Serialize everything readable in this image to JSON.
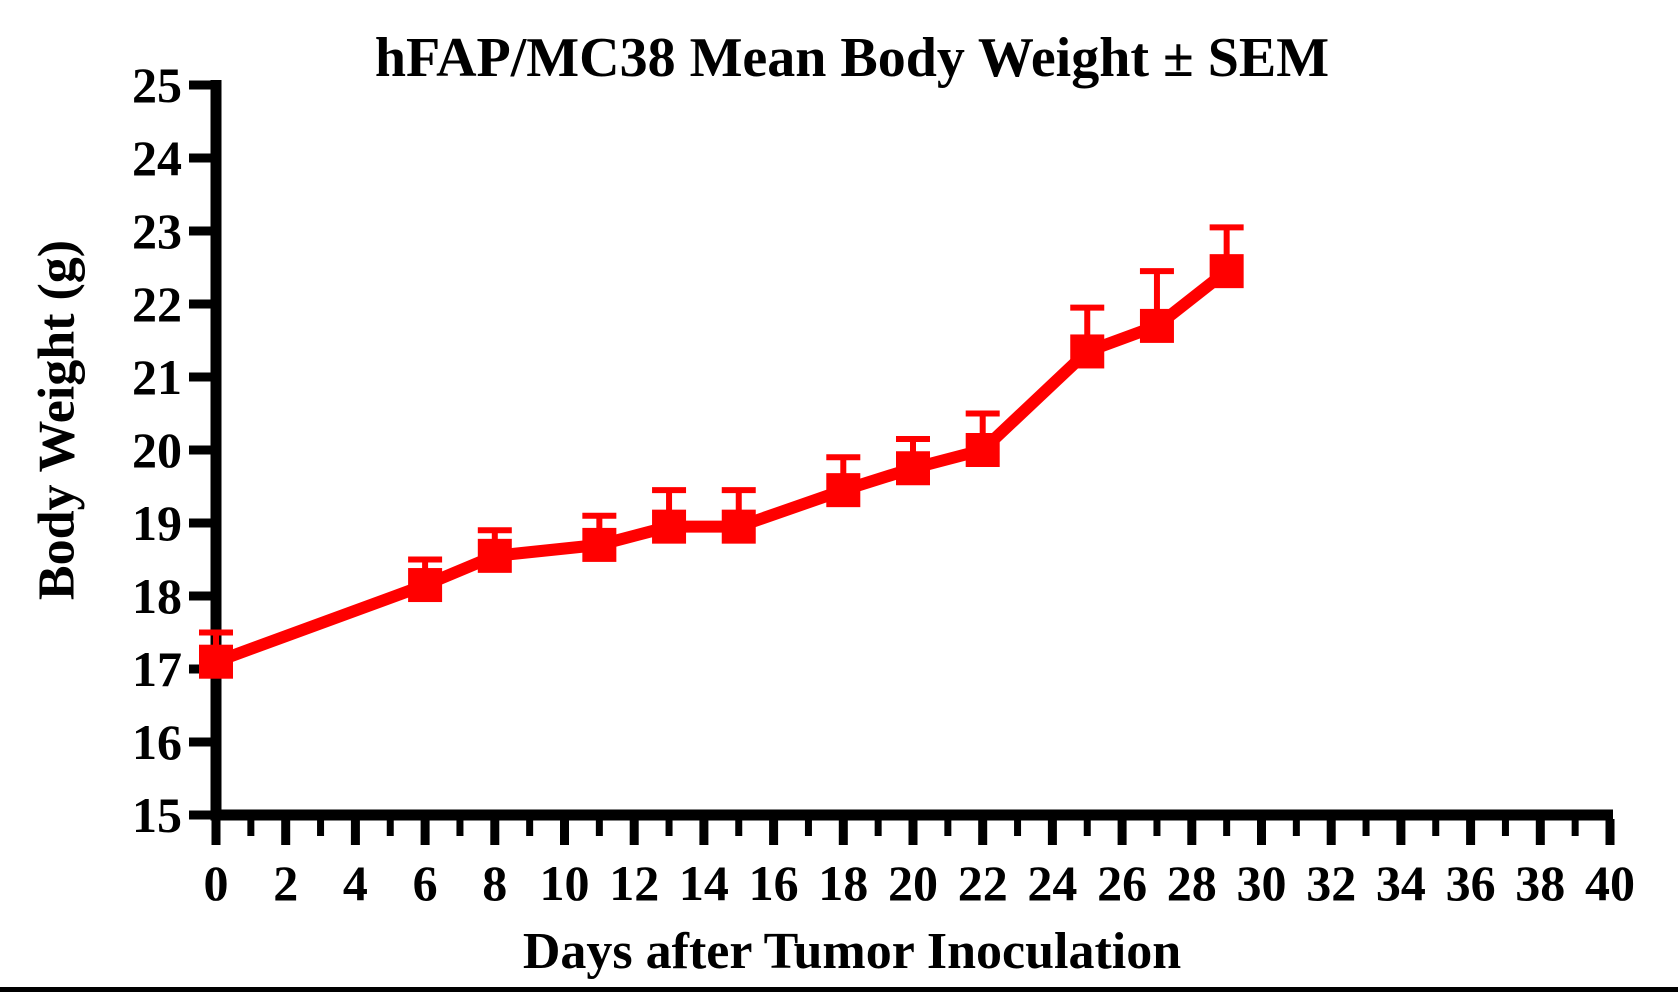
{
  "chart_data": {
    "type": "line",
    "title": "hFAP/MC38 Mean Body Weight ± SEM",
    "xlabel": "Days after Tumor Inoculation",
    "ylabel": "Body Weight (g)",
    "xlim": [
      0,
      40
    ],
    "ylim": [
      15,
      25
    ],
    "grid": false,
    "error_bars": "upper-only",
    "background_color": "#FFFFFF",
    "axis_color": "#000000",
    "x_major_ticks": [
      0,
      2,
      4,
      6,
      8,
      10,
      12,
      14,
      16,
      18,
      20,
      22,
      24,
      26,
      28,
      30,
      32,
      34,
      36,
      38,
      40
    ],
    "x_tick_labels": [
      "0",
      "2",
      "4",
      "6",
      "8",
      "10",
      "12",
      "14",
      "16",
      "18",
      "20",
      "22",
      "24",
      "26",
      "28",
      "30",
      "32",
      "34",
      "36",
      "38",
      "40"
    ],
    "x_minor_ticks": [
      1,
      3,
      5,
      7,
      9,
      11,
      13,
      15,
      17,
      19,
      21,
      23,
      25,
      27,
      29,
      31,
      33,
      35,
      37,
      39
    ],
    "y_ticks": [
      15,
      16,
      17,
      18,
      19,
      20,
      21,
      22,
      23,
      24,
      25
    ],
    "y_tick_labels": [
      "15",
      "16",
      "17",
      "18",
      "19",
      "20",
      "21",
      "22",
      "23",
      "24",
      "25"
    ],
    "x": [
      0,
      6,
      8,
      11,
      13,
      15,
      18,
      20,
      22,
      25,
      27,
      29
    ],
    "series": [
      {
        "name": "hFAP/MC38 mean body weight",
        "color": "#FF0000",
        "marker": "square",
        "values": [
          17.1,
          18.15,
          18.55,
          18.7,
          18.95,
          18.95,
          19.45,
          19.75,
          20.0,
          21.35,
          21.7,
          22.45
        ],
        "sem": [
          0.4,
          0.35,
          0.35,
          0.4,
          0.5,
          0.5,
          0.45,
          0.4,
          0.5,
          0.6,
          0.75,
          0.6
        ]
      }
    ]
  }
}
